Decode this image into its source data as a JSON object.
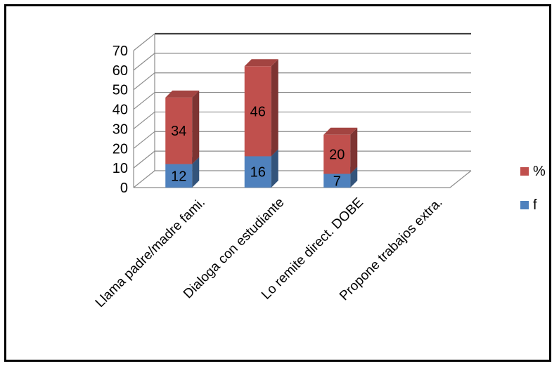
{
  "chart_data": {
    "type": "bar",
    "stacked": true,
    "three_d": true,
    "categories": [
      "Llama padre/madre fami.",
      "Dialoga con estudiante",
      "Lo remite direct. DOBE",
      "Propone trabajos extra."
    ],
    "series": [
      {
        "name": "f",
        "values": [
          12,
          16,
          7,
          0
        ],
        "color": "#4f81bd"
      },
      {
        "name": "%",
        "values": [
          34,
          46,
          20,
          0
        ],
        "color": "#c0504d"
      }
    ],
    "ylim": [
      0,
      70
    ],
    "yticks": [
      "0",
      "10",
      "20",
      "30",
      "40",
      "50",
      "60",
      "70"
    ],
    "grid": true,
    "legend_position": "right",
    "title": "",
    "xlabel": "",
    "ylabel": ""
  }
}
